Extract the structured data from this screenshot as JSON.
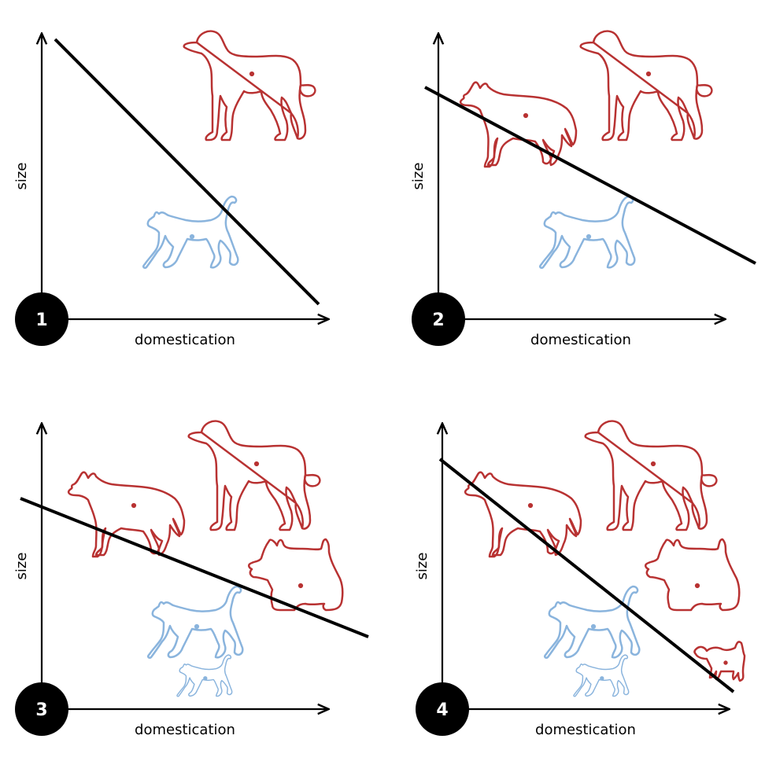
{
  "colors": {
    "dog": "#b83232",
    "cat": "#8ab4dd",
    "axis": "#000000",
    "boundary": "#000000",
    "badge": "#000000"
  },
  "panels": [
    {
      "number": "1",
      "xlabel": "domestication",
      "ylabel": "size",
      "dogs": [
        "large-dog"
      ],
      "cats": [
        "cat"
      ]
    },
    {
      "number": "2",
      "xlabel": "domestication",
      "ylabel": "size",
      "dogs": [
        "wolf",
        "large-dog"
      ],
      "cats": [
        "cat"
      ]
    },
    {
      "number": "3",
      "xlabel": "domestication",
      "ylabel": "size",
      "dogs": [
        "wolf",
        "large-dog",
        "terrier"
      ],
      "cats": [
        "cat",
        "kitten"
      ]
    },
    {
      "number": "4",
      "xlabel": "domestication",
      "ylabel": "size",
      "dogs": [
        "wolf",
        "large-dog",
        "terrier",
        "small-dog"
      ],
      "cats": [
        "cat",
        "kitten"
      ]
    }
  ]
}
